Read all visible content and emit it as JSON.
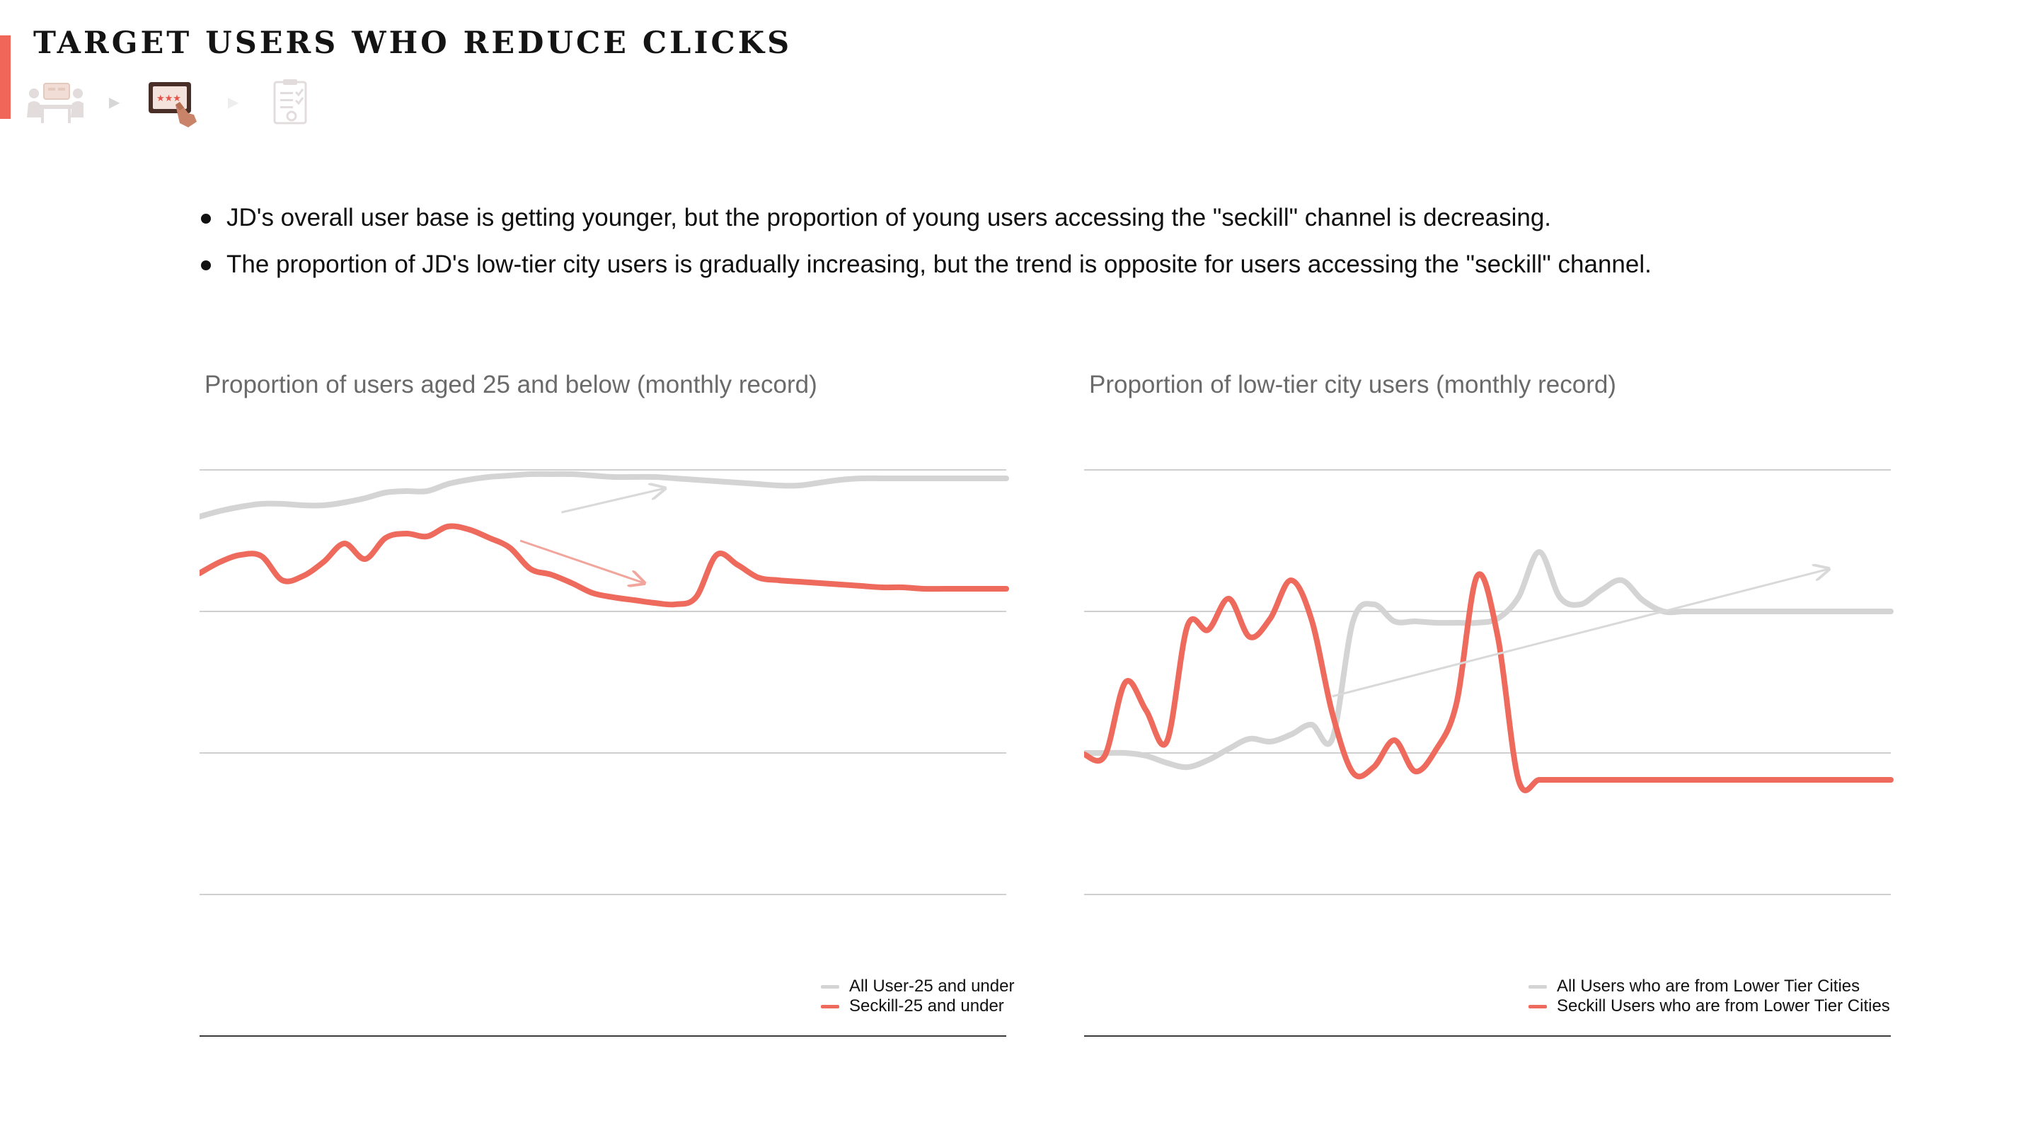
{
  "page": {
    "title": "TARGET USERS WHO REDUCE CLICKS",
    "accent_color": "#f0675a",
    "steps": [
      {
        "icon": "meeting-people-icon",
        "active": false
      },
      {
        "icon": "tablet-tap-icon",
        "active": true
      },
      {
        "icon": "checklist-icon",
        "active": false
      }
    ]
  },
  "bullets": [
    "JD's overall user base is getting younger, but the proportion of young users accessing the \"seckill\" channel is decreasing.",
    "The proportion of JD's low-tier city users is gradually increasing, but the trend is opposite for users accessing the \"seckill\" channel."
  ],
  "chart_data": [
    {
      "type": "line",
      "title": "Proportion of users aged 25 and below (monthly record)",
      "xlabel": "",
      "ylabel": "",
      "ylim": [
        0,
        4
      ],
      "grid": true,
      "legend_position": "bottom-right",
      "x": [
        1,
        2,
        3,
        4,
        5,
        6,
        7,
        8,
        9,
        10,
        11,
        12,
        13,
        14,
        15,
        16,
        17,
        18,
        19,
        20,
        21,
        22,
        23,
        24,
        25,
        26,
        27,
        28,
        29,
        30,
        31,
        32,
        33,
        34,
        35,
        36,
        37,
        38,
        39,
        40
      ],
      "series": [
        {
          "name": "All User-25 and under",
          "color": "#d4d4d4",
          "values": [
            3.67,
            3.71,
            3.74,
            3.76,
            3.76,
            3.75,
            3.75,
            3.77,
            3.8,
            3.84,
            3.85,
            3.85,
            3.9,
            3.93,
            3.95,
            3.96,
            3.97,
            3.97,
            3.97,
            3.96,
            3.95,
            3.95,
            3.95,
            3.94,
            3.93,
            3.92,
            3.91,
            3.9,
            3.89,
            3.89,
            3.91,
            3.93,
            3.94,
            3.94,
            3.94,
            3.94,
            3.94,
            3.94,
            3.94,
            3.94
          ]
        },
        {
          "name": "Seckill-25 and under",
          "color": "#ee6a5c",
          "values": [
            3.27,
            3.35,
            3.4,
            3.39,
            3.22,
            3.25,
            3.35,
            3.48,
            3.37,
            3.52,
            3.55,
            3.53,
            3.6,
            3.58,
            3.52,
            3.45,
            3.3,
            3.26,
            3.2,
            3.13,
            3.1,
            3.08,
            3.06,
            3.05,
            3.1,
            3.4,
            3.33,
            3.24,
            3.22,
            3.21,
            3.2,
            3.19,
            3.18,
            3.17,
            3.17,
            3.16,
            3.16,
            3.16,
            3.16,
            3.16
          ]
        }
      ],
      "annotations": [
        {
          "type": "trend-arrow",
          "series": "All User-25 and under",
          "from": [
            18.5,
            3.7
          ],
          "to": [
            23.5,
            3.87
          ]
        },
        {
          "type": "trend-arrow",
          "series": "Seckill-25 and under",
          "from": [
            16.5,
            3.5
          ],
          "to": [
            22.5,
            3.2
          ]
        }
      ]
    },
    {
      "type": "line",
      "title": "Proportion of low-tier city users (monthly record)",
      "xlabel": "",
      "ylabel": "",
      "ylim": [
        0,
        4
      ],
      "grid": true,
      "legend_position": "bottom-right",
      "x": [
        1,
        2,
        3,
        4,
        5,
        6,
        7,
        8,
        9,
        10,
        11,
        12,
        13,
        14,
        15,
        16,
        17,
        18,
        19,
        20,
        21,
        22,
        23,
        24,
        25,
        26,
        27,
        28,
        29,
        30,
        31,
        32,
        33,
        34,
        35,
        36,
        37,
        38,
        39,
        40
      ],
      "series": [
        {
          "name": "All Users who are from Lower Tier Cities",
          "color": "#d4d4d4",
          "values": [
            2.0,
            2.0,
            2.0,
            1.98,
            1.93,
            1.9,
            1.95,
            2.03,
            2.1,
            2.08,
            2.13,
            2.2,
            2.1,
            2.93,
            3.05,
            2.93,
            2.93,
            2.92,
            2.92,
            2.92,
            2.95,
            3.1,
            3.42,
            3.1,
            3.05,
            3.15,
            3.22,
            3.08,
            3.0,
            3.0,
            3.0,
            3.0,
            3.0,
            3.0,
            3.0,
            3.0,
            3.0,
            3.0,
            3.0,
            3.0
          ]
        },
        {
          "name": "Seckill Users who are from Lower Tier Cities",
          "color": "#ee6a5c",
          "values": [
            1.99,
            1.98,
            2.5,
            2.3,
            2.08,
            2.9,
            2.87,
            3.09,
            2.82,
            2.95,
            3.22,
            2.94,
            2.28,
            1.86,
            1.9,
            2.09,
            1.87,
            2.02,
            2.35,
            3.25,
            2.82,
            1.81,
            1.81,
            1.81,
            1.81,
            1.81,
            1.81,
            1.81,
            1.81,
            1.81,
            1.81,
            1.81,
            1.81,
            1.81,
            1.81,
            1.81,
            1.81,
            1.81,
            1.81,
            1.81
          ]
        }
      ],
      "annotations": [
        {
          "type": "trend-arrow",
          "series": "All Users who are from Lower Tier Cities",
          "from": [
            13,
            2.4
          ],
          "to": [
            37,
            3.3
          ]
        }
      ]
    }
  ]
}
